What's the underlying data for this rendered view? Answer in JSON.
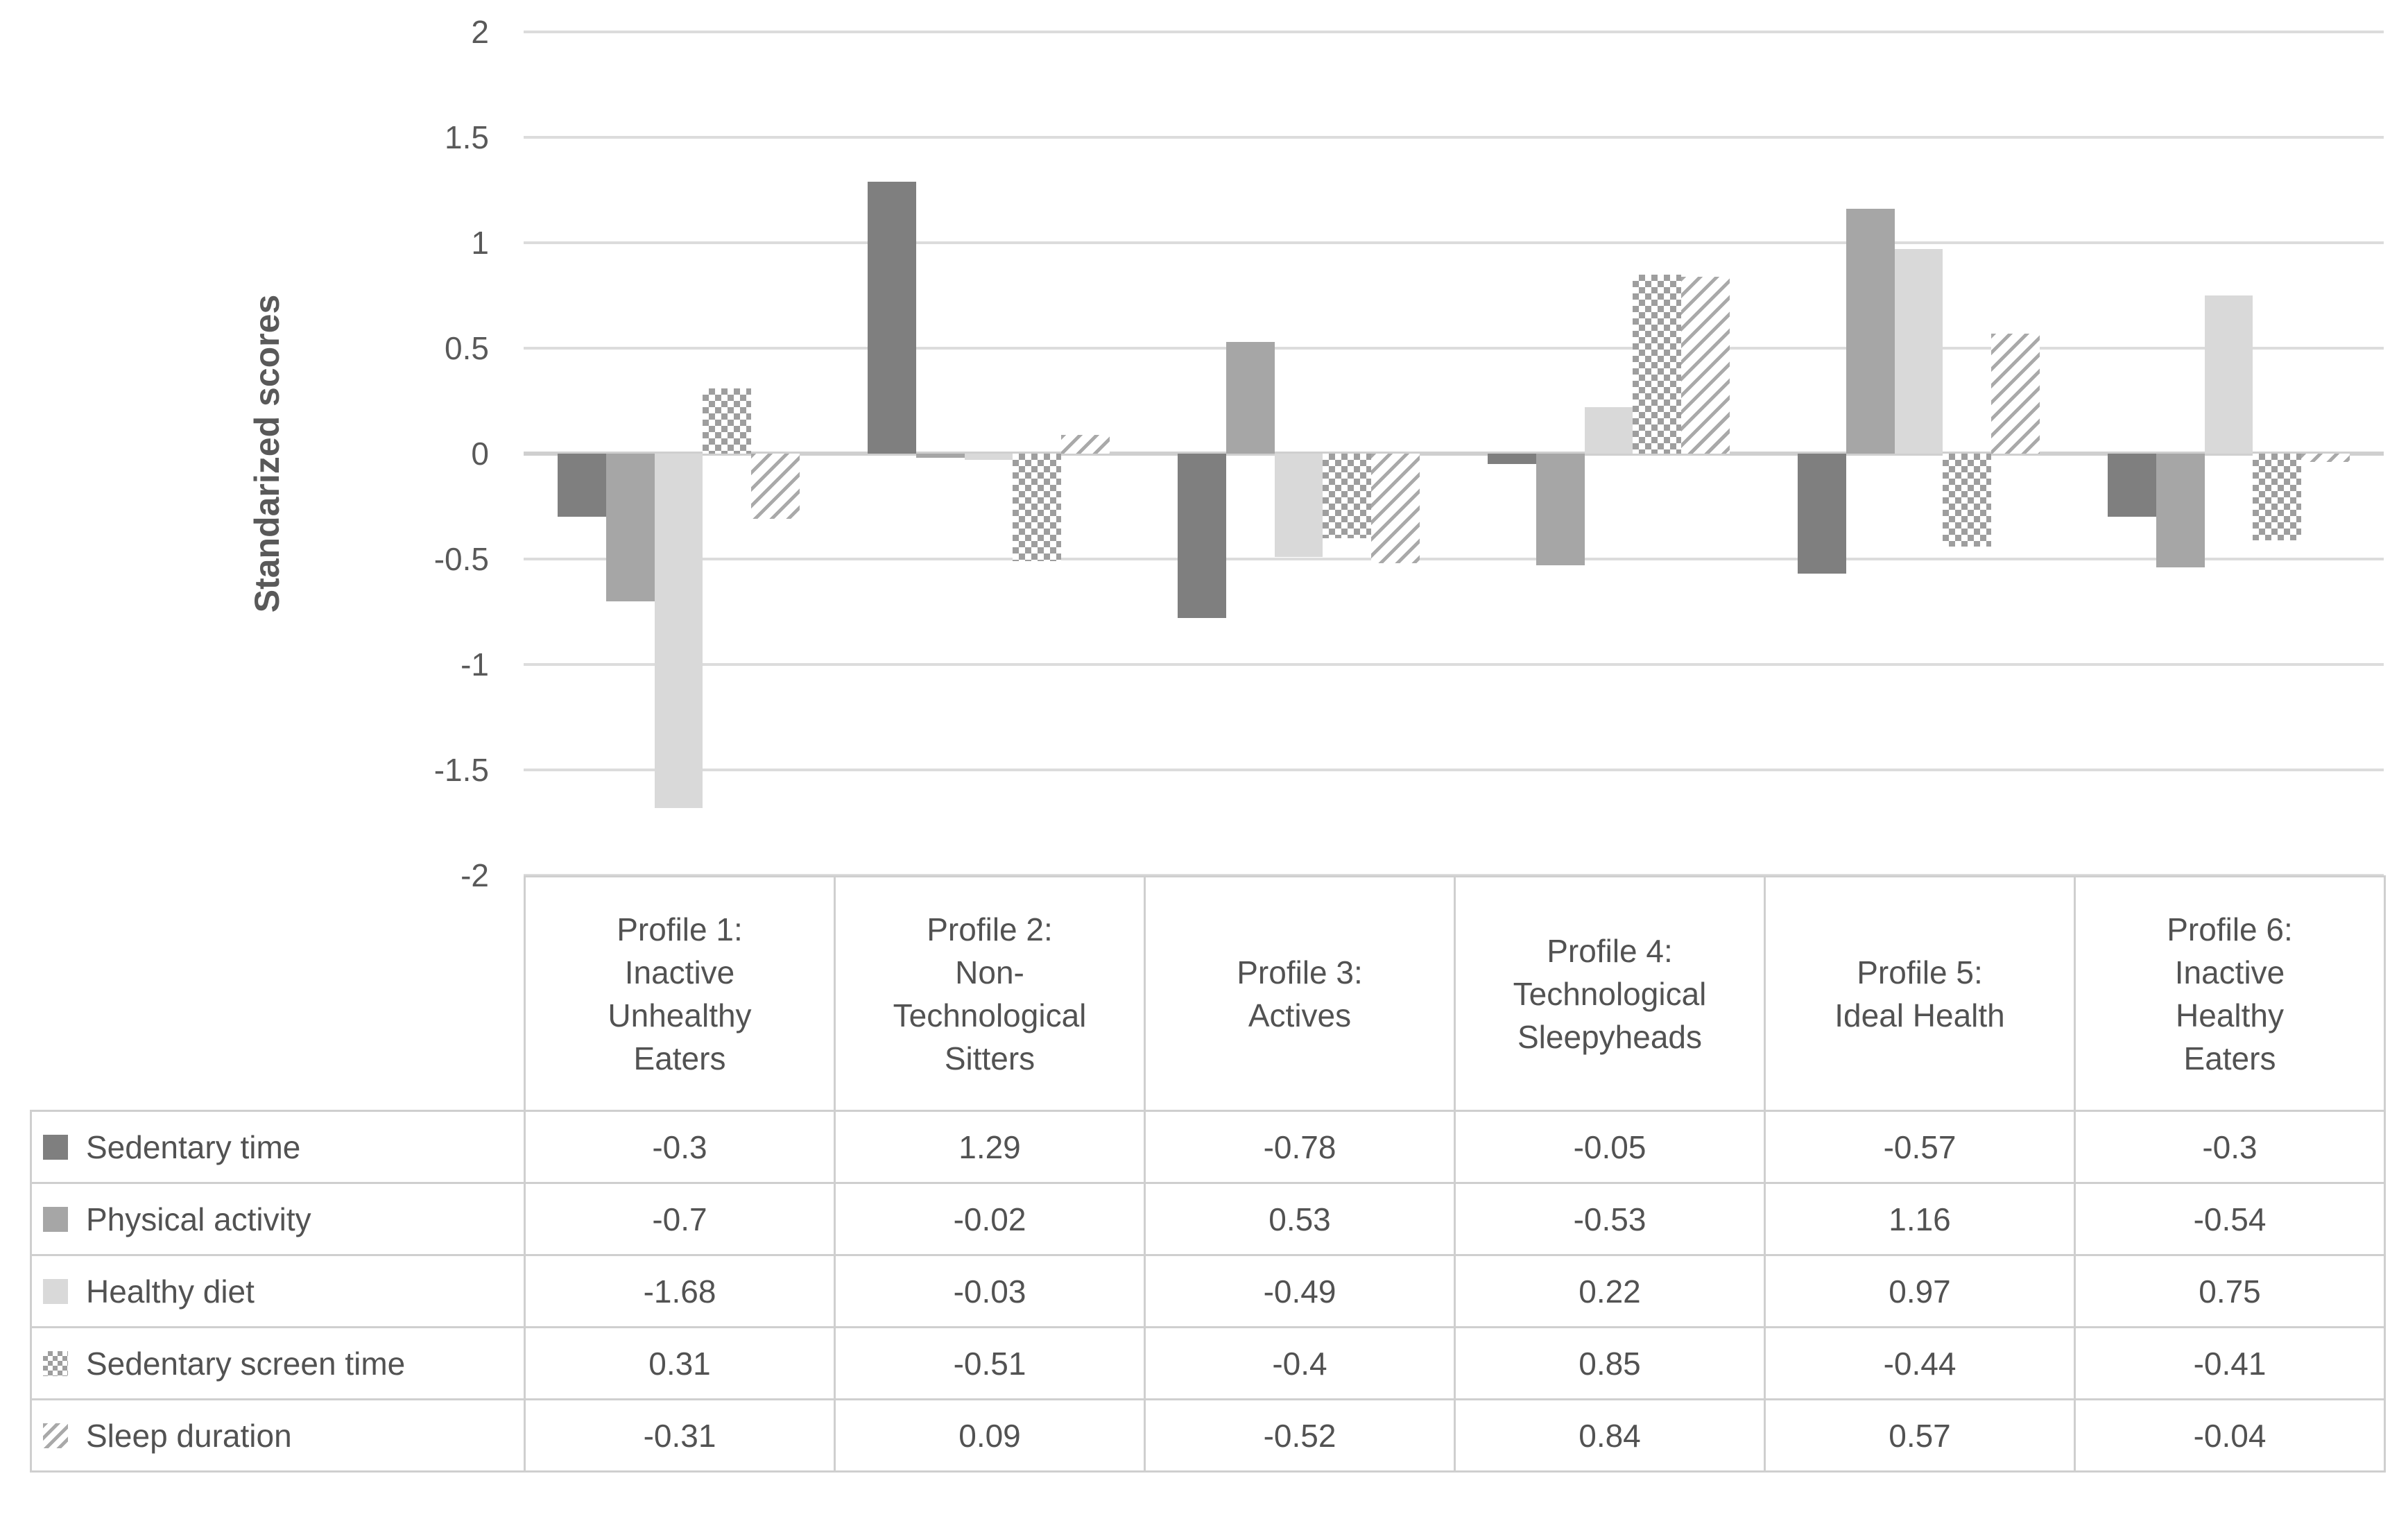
{
  "chart_data": {
    "type": "bar",
    "title": "",
    "ylabel": "Standarized scores",
    "xlabel": "",
    "ylim": [
      -2,
      2
    ],
    "ytick_step": 0.5,
    "ytick_labels": [
      "2",
      "1.5",
      "1",
      "0.5",
      "0",
      "-0.5",
      "-1",
      "-1.5",
      "-2"
    ],
    "grid": true,
    "legend_position": "data-table-left-column",
    "categories": [
      [
        "Profile 1:",
        "Inactive",
        "Unhealthy",
        "Eaters"
      ],
      [
        "Profile 2:",
        "Non-",
        "Technological",
        "Sitters"
      ],
      [
        "Profile 3:",
        "Actives"
      ],
      [
        "Profile 4:",
        "Technological",
        "Sleepyheads"
      ],
      [
        "Profile 5:",
        "Ideal Health"
      ],
      [
        "Profile 6:",
        "Inactive",
        "Healthy",
        "Eaters"
      ]
    ],
    "series": [
      {
        "name": "Sedentary time",
        "pattern": "solid",
        "color": "#7f7f7f",
        "values": [
          -0.3,
          1.29,
          -0.78,
          -0.05,
          -0.57,
          -0.3
        ]
      },
      {
        "name": "Physical activity",
        "pattern": "solid",
        "color": "#a6a6a6",
        "values": [
          -0.7,
          -0.02,
          0.53,
          -0.53,
          1.16,
          -0.54
        ]
      },
      {
        "name": "Healthy diet",
        "pattern": "solid",
        "color": "#d9d9d9",
        "values": [
          -1.68,
          -0.03,
          -0.49,
          0.22,
          0.97,
          0.75
        ]
      },
      {
        "name": "Sedentary screen time",
        "pattern": "checker",
        "color": "#9e9e9e",
        "values": [
          0.31,
          -0.51,
          -0.4,
          0.85,
          -0.44,
          -0.41
        ]
      },
      {
        "name": "Sleep duration",
        "pattern": "diagonal",
        "color": "#a9a9a9",
        "values": [
          -0.31,
          0.09,
          -0.52,
          0.84,
          0.57,
          -0.04
        ]
      }
    ]
  },
  "colors": {
    "background": "#ffffff",
    "axis_text": "#595959",
    "table_text": "#525252",
    "gridline": "#dcdcdc",
    "zero_line": "#cfcfcf",
    "table_border": "#cfcfcf"
  }
}
